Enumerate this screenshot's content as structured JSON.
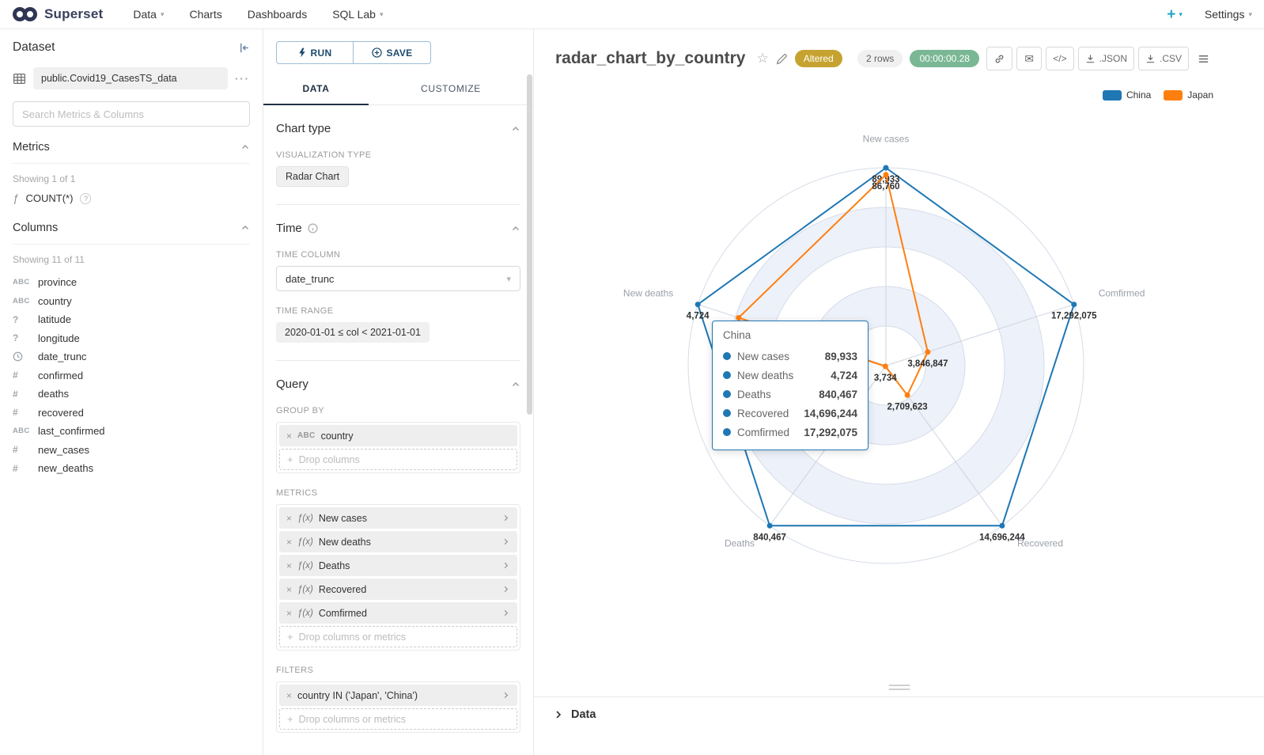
{
  "navbar": {
    "brand": "Superset",
    "menus": [
      {
        "label": "Data"
      },
      {
        "label": "Charts"
      },
      {
        "label": "Dashboards"
      },
      {
        "label": "SQL Lab"
      }
    ],
    "plus_label": "+",
    "settings_label": "Settings"
  },
  "dataset_panel": {
    "title": "Dataset",
    "dataset_name": "public.Covid19_CasesTS_data",
    "search_placeholder": "Search Metrics & Columns",
    "metrics_section": {
      "title": "Metrics",
      "showing": "Showing 1 of 1",
      "help_icon": "?",
      "items": [
        {
          "icon": "ƒ",
          "name": "COUNT(*)"
        }
      ]
    },
    "columns_section": {
      "title": "Columns",
      "showing": "Showing 11 of 11",
      "items": [
        {
          "type": "ABC",
          "name": "province"
        },
        {
          "type": "ABC",
          "name": "country"
        },
        {
          "type": "?",
          "name": "latitude"
        },
        {
          "type": "?",
          "name": "longitude"
        },
        {
          "type": "clock",
          "name": "date_trunc"
        },
        {
          "type": "#",
          "name": "confirmed"
        },
        {
          "type": "#",
          "name": "deaths"
        },
        {
          "type": "#",
          "name": "recovered"
        },
        {
          "type": "ABC",
          "name": "last_confirmed"
        },
        {
          "type": "#",
          "name": "new_cases"
        },
        {
          "type": "#",
          "name": "new_deaths"
        }
      ]
    }
  },
  "controls": {
    "run_label": "RUN",
    "save_label": "SAVE",
    "tabs": [
      {
        "label": "DATA",
        "active": true
      },
      {
        "label": "CUSTOMIZE",
        "active": false
      }
    ],
    "chart_type": {
      "title": "Chart type",
      "viz_type_label": "VISUALIZATION TYPE",
      "viz_type_value": "Radar Chart"
    },
    "time": {
      "title": "Time",
      "time_column_label": "TIME COLUMN",
      "time_column_value": "date_trunc",
      "time_range_label": "TIME RANGE",
      "time_range_value": "2020-01-01 ≤ col < 2021-01-01"
    },
    "query": {
      "title": "Query",
      "group_by_label": "GROUP BY",
      "group_by_items": [
        {
          "prefix": "ABC",
          "label": "country"
        }
      ],
      "group_by_placeholder": "Drop columns",
      "metrics_label": "METRICS",
      "metric_items": [
        {
          "prefix": "ƒ(x)",
          "label": "New cases"
        },
        {
          "prefix": "ƒ(x)",
          "label": "New deaths"
        },
        {
          "prefix": "ƒ(x)",
          "label": "Deaths"
        },
        {
          "prefix": "ƒ(x)",
          "label": "Recovered"
        },
        {
          "prefix": "ƒ(x)",
          "label": "Comfirmed"
        }
      ],
      "metrics_placeholder": "Drop columns or metrics",
      "filters_label": "FILTERS",
      "filter_items": [
        {
          "label": "country IN ('Japan', 'China')"
        }
      ],
      "filters_placeholder": "Drop columns or metrics"
    }
  },
  "chart_header": {
    "title": "radar_chart_by_country",
    "altered_badge": "Altered",
    "rows_badge": "2 rows",
    "timer_badge": "00:00:00.28",
    "code_label": "</>",
    "export_json_label": ".JSON",
    "export_csv_label": ".CSV"
  },
  "tooltip": {
    "title": "China",
    "rows": [
      {
        "label": "New cases",
        "value": "89,933"
      },
      {
        "label": "New deaths",
        "value": "4,724"
      },
      {
        "label": "Deaths",
        "value": "840,467"
      },
      {
        "label": "Recovered",
        "value": "14,696,244"
      },
      {
        "label": "Comfirmed",
        "value": "17,292,075"
      }
    ]
  },
  "footer": {
    "data_panel_label": "Data"
  },
  "chart_data": {
    "type": "radar",
    "title": "radar_chart_by_country",
    "indicators": [
      "New cases",
      "New deaths",
      "Deaths",
      "Recovered",
      "Comfirmed"
    ],
    "axis_max": [
      89933,
      4724,
      840467,
      14696244,
      17292075
    ],
    "legend": [
      "China",
      "Japan"
    ],
    "legend_position": "top-right",
    "grid": {
      "shape": "circle",
      "rings": 5
    },
    "series": [
      {
        "name": "China",
        "color": "#1F77B4",
        "values": [
          89933,
          4724,
          840467,
          14696244,
          17292075
        ],
        "labels": [
          "89,933",
          "4,724",
          "840,467",
          "14,696,244",
          "17,292,075"
        ]
      },
      {
        "name": "Japan",
        "color": "#FF7F0E",
        "values": [
          86760,
          3700,
          3734,
          2709623,
          3846847
        ],
        "labels": [
          "86,760",
          "",
          "3,734",
          "2,709,623",
          "3,846,847"
        ]
      }
    ]
  }
}
